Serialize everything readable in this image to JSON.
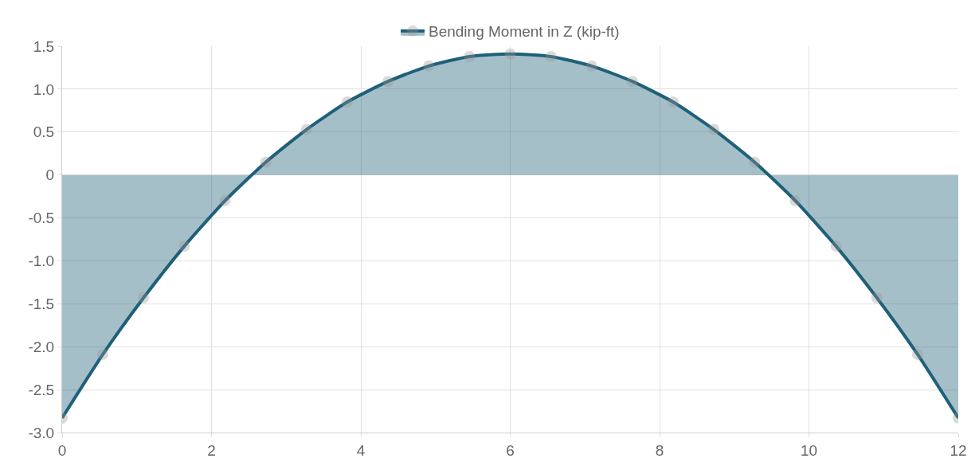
{
  "chart_data": {
    "type": "area",
    "legend": "top",
    "grid": true,
    "marker": "circle",
    "line_style": "solid",
    "x": [
      0,
      0.545,
      1.091,
      1.636,
      2.182,
      2.727,
      3.273,
      3.818,
      4.364,
      4.909,
      5.455,
      6,
      6.545,
      7.091,
      7.636,
      8.182,
      8.727,
      9.273,
      9.818,
      10.364,
      10.909,
      11.455,
      12
    ],
    "series": [
      {
        "name": "Bending Moment in Z (kip-ft)",
        "color": "#1f6079",
        "values": [
          -2.83,
          -2.09,
          -1.43,
          -0.83,
          -0.3,
          0.15,
          0.53,
          0.85,
          1.09,
          1.27,
          1.38,
          1.41,
          1.38,
          1.27,
          1.09,
          0.85,
          0.53,
          0.15,
          -0.3,
          -0.83,
          -1.43,
          -2.09,
          -2.83
        ]
      }
    ],
    "xlim": [
      0,
      12
    ],
    "xticks": [
      0,
      2,
      4,
      6,
      8,
      10,
      12
    ],
    "ylim": [
      -3,
      1.5
    ],
    "yticks": [
      {
        "value": -3,
        "label": "-3.0"
      },
      {
        "value": -2.5,
        "label": "-2.5"
      },
      {
        "value": -2,
        "label": "-2.0"
      },
      {
        "value": -1.5,
        "label": "-1.5"
      },
      {
        "value": -1,
        "label": "-1.0"
      },
      {
        "value": -0.5,
        "label": "-0.5"
      },
      0,
      {
        "value": 0.5,
        "label": "0.5"
      },
      {
        "value": 1,
        "label": "1.0"
      },
      {
        "value": 1.5,
        "label": "1.5"
      }
    ]
  }
}
